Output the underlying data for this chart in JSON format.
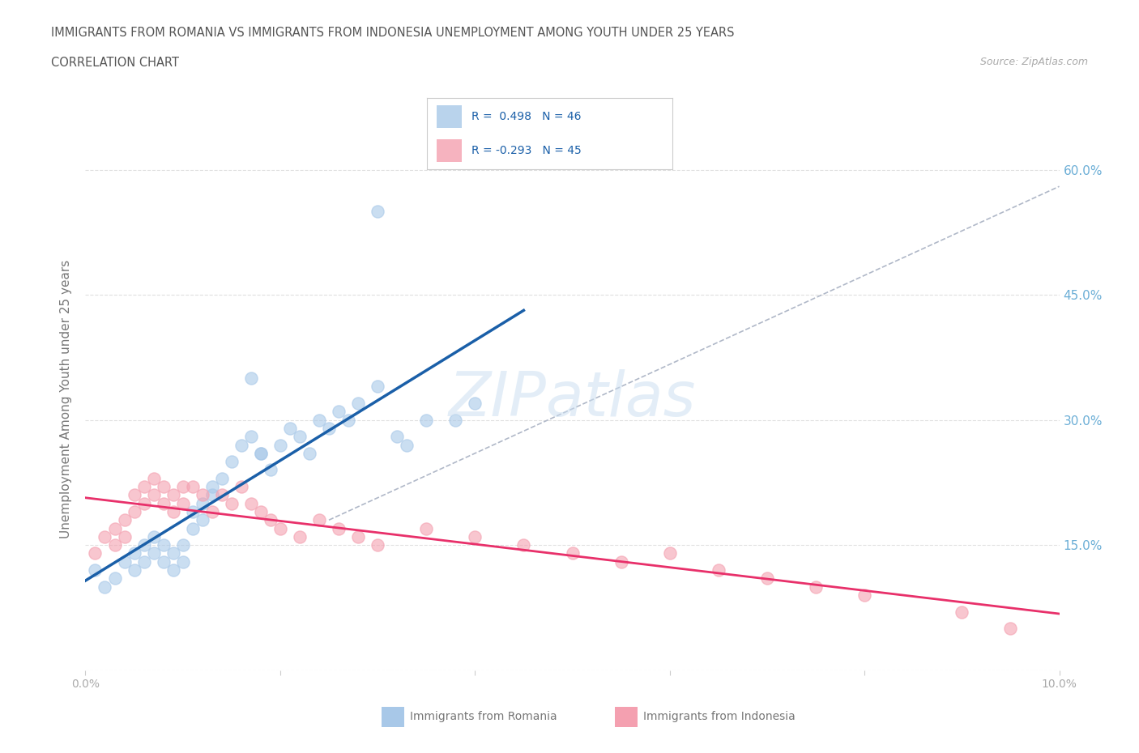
{
  "title_line1": "IMMIGRANTS FROM ROMANIA VS IMMIGRANTS FROM INDONESIA UNEMPLOYMENT AMONG YOUTH UNDER 25 YEARS",
  "title_line2": "CORRELATION CHART",
  "source": "Source: ZipAtlas.com",
  "ylabel": "Unemployment Among Youth under 25 years",
  "xlim": [
    0.0,
    0.1
  ],
  "ylim": [
    0.0,
    0.65
  ],
  "x_ticks": [
    0.0,
    0.02,
    0.04,
    0.06,
    0.08,
    0.1
  ],
  "x_tick_labels": [
    "0.0%",
    "",
    "",
    "",
    "",
    "10.0%"
  ],
  "y_ticks": [
    0.0,
    0.15,
    0.3,
    0.45,
    0.6
  ],
  "y_tick_labels": [
    "",
    "15.0%",
    "30.0%",
    "45.0%",
    "60.0%"
  ],
  "romania_R": 0.498,
  "romania_N": 46,
  "indonesia_R": -0.293,
  "indonesia_N": 45,
  "romania_color": "#a8c8e8",
  "indonesia_color": "#f4a0b0",
  "romania_line_color": "#1a5fa8",
  "indonesia_line_color": "#e8306a",
  "trend_line_color": "#b0b8c8",
  "watermark": "ZIPatlas",
  "romania_scatter_x": [
    0.001,
    0.002,
    0.003,
    0.004,
    0.005,
    0.005,
    0.006,
    0.006,
    0.007,
    0.007,
    0.008,
    0.008,
    0.009,
    0.009,
    0.01,
    0.01,
    0.011,
    0.011,
    0.012,
    0.012,
    0.013,
    0.013,
    0.014,
    0.015,
    0.016,
    0.017,
    0.018,
    0.019,
    0.02,
    0.021,
    0.022,
    0.023,
    0.024,
    0.025,
    0.026,
    0.027,
    0.028,
    0.03,
    0.032,
    0.033,
    0.035,
    0.038,
    0.04,
    0.03,
    0.017,
    0.018
  ],
  "romania_scatter_y": [
    0.12,
    0.1,
    0.11,
    0.13,
    0.12,
    0.14,
    0.13,
    0.15,
    0.14,
    0.16,
    0.13,
    0.15,
    0.14,
    0.12,
    0.15,
    0.13,
    0.17,
    0.19,
    0.18,
    0.2,
    0.22,
    0.21,
    0.23,
    0.25,
    0.27,
    0.28,
    0.26,
    0.24,
    0.27,
    0.29,
    0.28,
    0.26,
    0.3,
    0.29,
    0.31,
    0.3,
    0.32,
    0.34,
    0.28,
    0.27,
    0.3,
    0.3,
    0.32,
    0.55,
    0.35,
    0.26
  ],
  "indonesia_scatter_x": [
    0.001,
    0.002,
    0.003,
    0.003,
    0.004,
    0.004,
    0.005,
    0.005,
    0.006,
    0.006,
    0.007,
    0.007,
    0.008,
    0.008,
    0.009,
    0.009,
    0.01,
    0.01,
    0.011,
    0.012,
    0.013,
    0.014,
    0.015,
    0.016,
    0.017,
    0.018,
    0.019,
    0.02,
    0.022,
    0.024,
    0.026,
    0.028,
    0.03,
    0.035,
    0.04,
    0.045,
    0.05,
    0.055,
    0.06,
    0.065,
    0.07,
    0.075,
    0.08,
    0.09,
    0.095
  ],
  "indonesia_scatter_y": [
    0.14,
    0.16,
    0.15,
    0.17,
    0.18,
    0.16,
    0.19,
    0.21,
    0.2,
    0.22,
    0.21,
    0.23,
    0.22,
    0.2,
    0.21,
    0.19,
    0.22,
    0.2,
    0.22,
    0.21,
    0.19,
    0.21,
    0.2,
    0.22,
    0.2,
    0.19,
    0.18,
    0.17,
    0.16,
    0.18,
    0.17,
    0.16,
    0.15,
    0.17,
    0.16,
    0.15,
    0.14,
    0.13,
    0.14,
    0.12,
    0.11,
    0.1,
    0.09,
    0.07,
    0.05
  ],
  "background_color": "#ffffff",
  "grid_color": "#e0e0e0",
  "title_color": "#555555",
  "axis_label_color": "#777777",
  "tick_label_color": "#aaaaaa",
  "right_tick_color": "#6baed6",
  "legend_border_color": "#cccccc"
}
